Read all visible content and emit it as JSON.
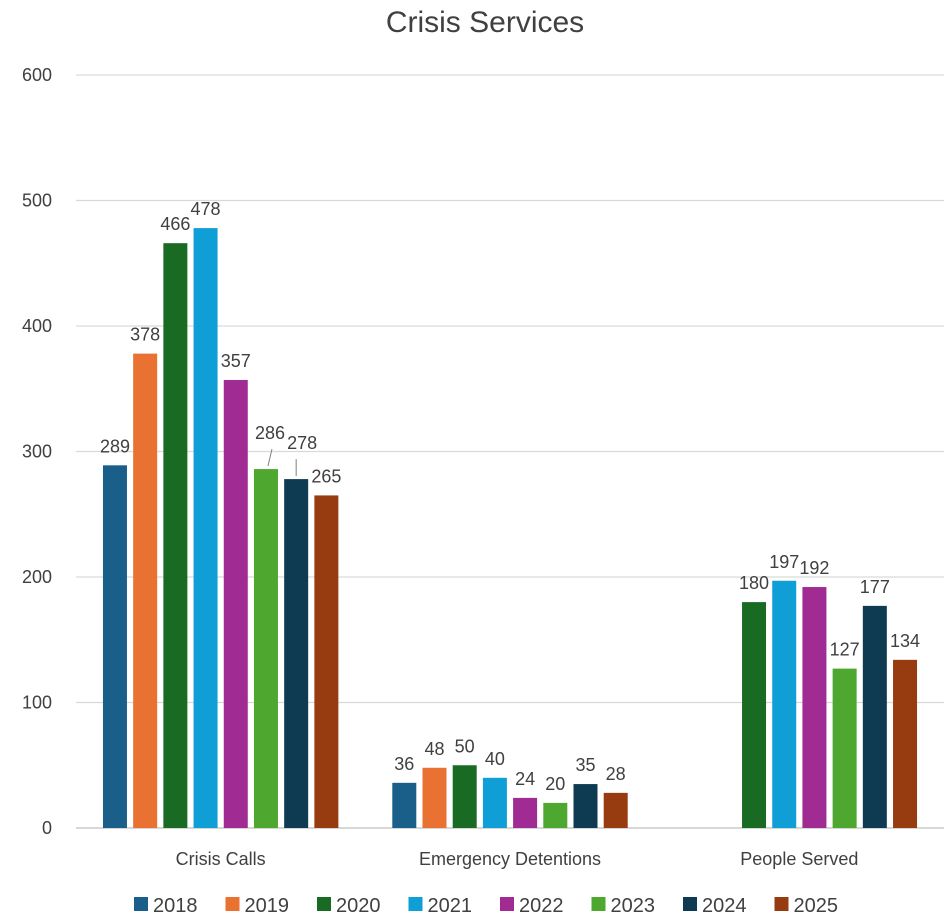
{
  "chart_data": {
    "type": "bar",
    "title": "Crisis Services",
    "xlabel": "",
    "ylabel": "",
    "ylim": [
      0,
      600
    ],
    "yticks": [
      "0",
      "100",
      "200",
      "300",
      "400",
      "500",
      "600"
    ],
    "grid": true,
    "legend_position": "bottom",
    "categories": [
      "Crisis Calls",
      "Emergency Detentions",
      "People Served"
    ],
    "series": [
      {
        "name": "2018",
        "color": "#1a5f8a",
        "values": [
          289,
          36,
          null
        ]
      },
      {
        "name": "2019",
        "color": "#e97132",
        "values": [
          378,
          48,
          null
        ]
      },
      {
        "name": "2020",
        "color": "#196b24",
        "values": [
          466,
          50,
          180
        ]
      },
      {
        "name": "2021",
        "color": "#0f9ed5",
        "values": [
          478,
          40,
          197
        ]
      },
      {
        "name": "2022",
        "color": "#a02b93",
        "values": [
          357,
          24,
          192
        ]
      },
      {
        "name": "2023",
        "color": "#4ea72e",
        "values": [
          286,
          20,
          127
        ]
      },
      {
        "name": "2024",
        "color": "#0e3a52",
        "values": [
          278,
          35,
          177
        ]
      },
      {
        "name": "2025",
        "color": "#963c10",
        "values": [
          265,
          28,
          134
        ]
      }
    ]
  }
}
